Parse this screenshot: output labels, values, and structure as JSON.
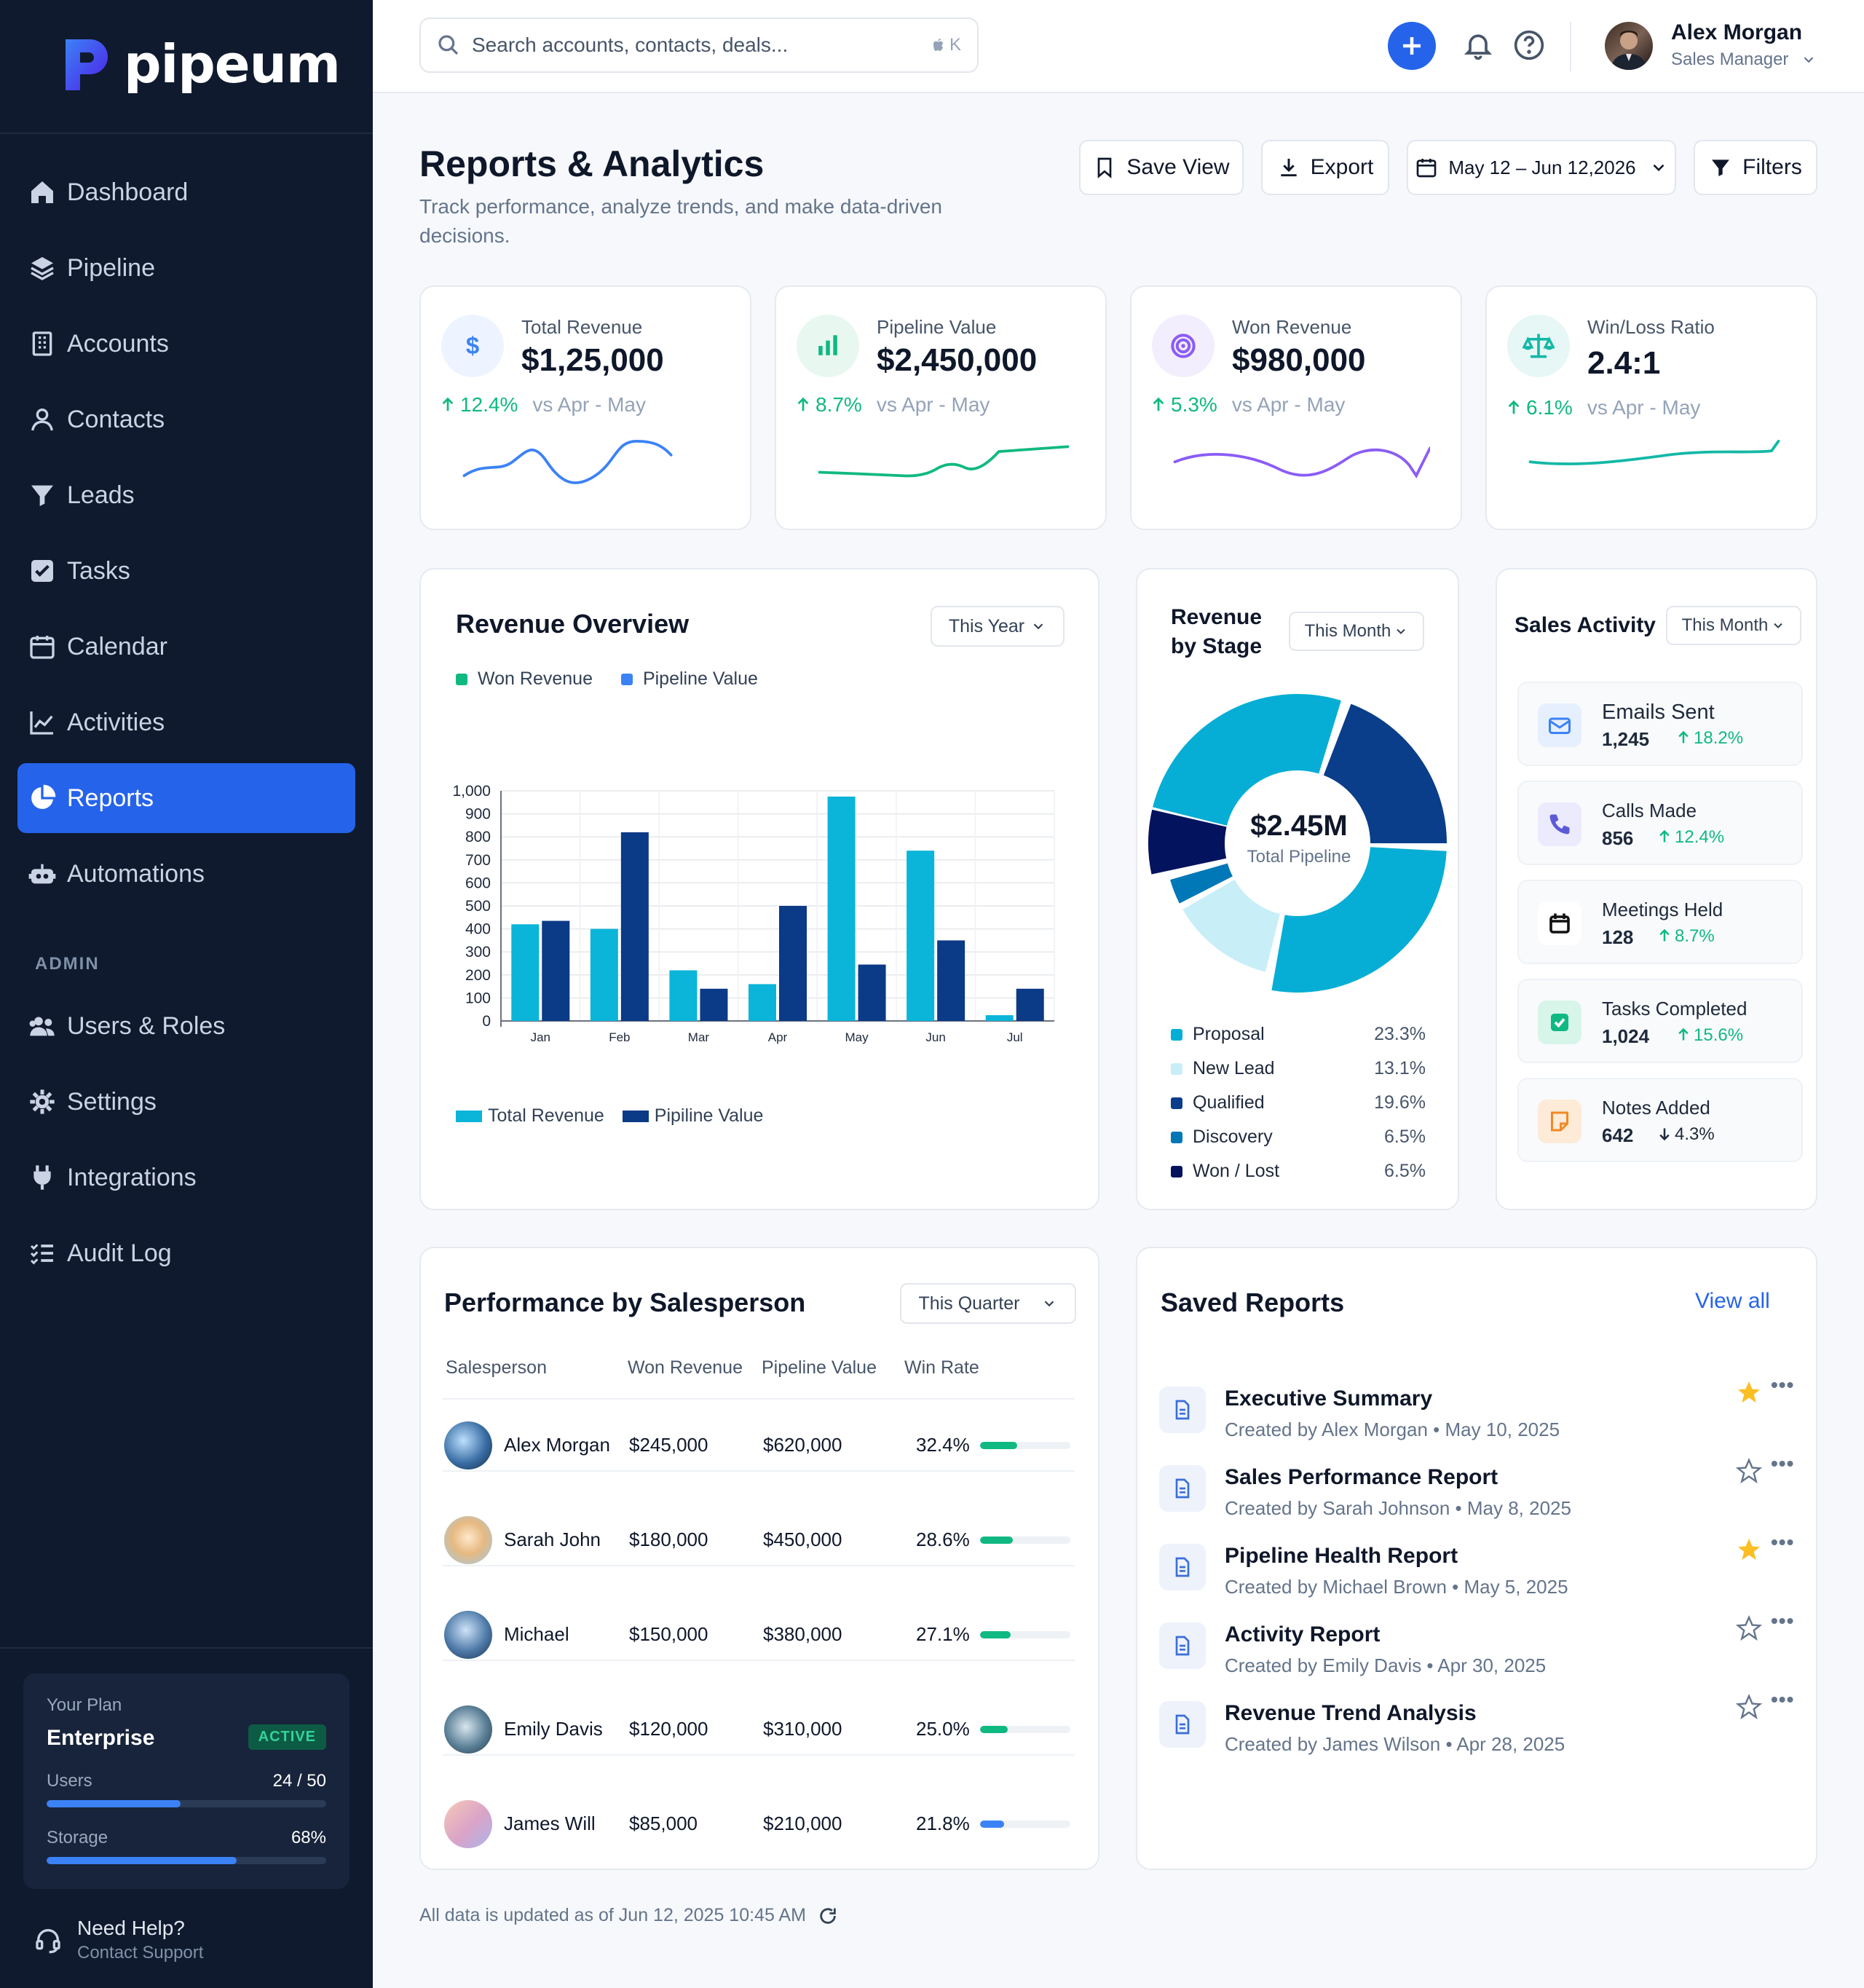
{
  "brand": {
    "name": "pipeum"
  },
  "sidebar": {
    "items": [
      {
        "label": "Dashboard",
        "icon": "home-icon"
      },
      {
        "label": "Pipeline",
        "icon": "layers-icon"
      },
      {
        "label": "Accounts",
        "icon": "building-icon"
      },
      {
        "label": "Contacts",
        "icon": "user-icon"
      },
      {
        "label": "Leads",
        "icon": "funnel-icon"
      },
      {
        "label": "Tasks",
        "icon": "checkbox-icon"
      },
      {
        "label": "Calendar",
        "icon": "calendar-icon"
      },
      {
        "label": "Activities",
        "icon": "line-chart-icon"
      },
      {
        "label": "Reports",
        "icon": "pie-chart-icon",
        "active": true
      },
      {
        "label": "Automations",
        "icon": "robot-icon"
      }
    ],
    "admin_label": "ADMIN",
    "admin_items": [
      {
        "label": "Users & Roles",
        "icon": "users-icon"
      },
      {
        "label": "Settings",
        "icon": "gear-icon"
      },
      {
        "label": "Integrations",
        "icon": "plug-icon"
      },
      {
        "label": "Audit Log",
        "icon": "list-icon"
      }
    ],
    "plan": {
      "label": "Your Plan",
      "name": "Enterprise",
      "status": "ACTIVE",
      "users_label": "Users",
      "users_value": "24 / 50",
      "users_fraction": 0.48,
      "storage_label": "Storage",
      "storage_value": "68%",
      "storage_fraction": 0.68
    },
    "help": {
      "title": "Need Help?",
      "subtitle": "Contact Support"
    }
  },
  "topbar": {
    "search_placeholder": "Search accounts, contacts, deals...",
    "shortcut": "K",
    "user_name": "Alex Morgan",
    "user_role": "Sales Manager"
  },
  "header": {
    "title": "Reports & Analytics",
    "subtitle": "Track performance, analyze trends, and make data-driven decisions.",
    "save_view": "Save View",
    "export": "Export",
    "date_range": "May 12 – Jun 12,2026",
    "filters": "Filters"
  },
  "kpis": [
    {
      "label": "Total Revenue",
      "value": "$1,25,000",
      "delta": "12.4%",
      "vs": "vs Apr - May",
      "color": "#3b82f6",
      "icon": "dollar-icon"
    },
    {
      "label": "Pipeline Value",
      "value": "$2,450,000",
      "delta": "8.7%",
      "vs": "vs Apr - May",
      "color": "#10b981",
      "icon": "bar-chart-icon"
    },
    {
      "label": "Won Revenue",
      "value": "$980,000",
      "delta": "5.3%",
      "vs": "vs Apr - May",
      "color": "#8b5cf6",
      "icon": "target-icon"
    },
    {
      "label": "Win/Loss Ratio",
      "value": "2.4:1",
      "delta": "6.1%",
      "vs": "vs Apr - May",
      "color": "#14b8a6",
      "icon": "scale-icon"
    }
  ],
  "revenue_overview": {
    "title": "Revenue Overview",
    "period": "This Year",
    "top_legend": [
      "Won Revenue",
      "Pipeline Value"
    ],
    "bottom_legend": [
      "Total Revenue",
      "Pipiline Value"
    ]
  },
  "chart_data": [
    {
      "type": "bar",
      "categories": [
        "Jan",
        "Feb",
        "Mar",
        "Apr",
        "May",
        "Jun",
        "Jul"
      ],
      "series": [
        {
          "name": "Total Revenue",
          "values": [
            420,
            400,
            220,
            160,
            975,
            740,
            25
          ]
        },
        {
          "name": "Pipiline Value",
          "values": [
            435,
            820,
            140,
            500,
            245,
            350,
            140
          ]
        }
      ],
      "ylim": [
        0,
        1000
      ],
      "yticks": [
        "0",
        "100",
        "200",
        "300",
        "400",
        "500",
        "600",
        "700",
        "800",
        "900",
        "1,000"
      ],
      "colors": [
        "#0bb4d9",
        "#0b3a86"
      ]
    },
    {
      "type": "pie",
      "title": "Revenue by Stage",
      "center_value": "$2.45M",
      "center_label": "Total Pipeline",
      "slices": [
        {
          "name": "Proposal",
          "pct": "23.3%",
          "color": "#06aed5"
        },
        {
          "name": "New Lead",
          "pct": "13.1%",
          "color": "#c8eef8"
        },
        {
          "name": "Qualified",
          "pct": "19.6%",
          "color": "#0a3d8a"
        },
        {
          "name": "Discovery",
          "pct": "6.5%",
          "color": "#0077b6"
        },
        {
          "name": "Won / Lost",
          "pct": "6.5%",
          "color": "#03135e"
        }
      ]
    }
  ],
  "revenue_by_stage": {
    "title_line1": "Revenue",
    "title_line2": "by Stage",
    "period": "This Month"
  },
  "sales_activity": {
    "title": "Sales Activity",
    "period": "This Month",
    "items": [
      {
        "label": "Emails Sent",
        "value": "1,245",
        "delta": "18.2%",
        "dir": "up",
        "icon": "mail-icon"
      },
      {
        "label": "Calls Made",
        "value": "856",
        "delta": "12.4%",
        "dir": "up",
        "icon": "phone-icon"
      },
      {
        "label": "Meetings Held",
        "value": "128",
        "delta": "8.7%",
        "dir": "up",
        "icon": "calendar-icon"
      },
      {
        "label": "Tasks Completed",
        "value": "1,024",
        "delta": "15.6%",
        "dir": "up",
        "icon": "check-square-icon"
      },
      {
        "label": "Notes Added",
        "value": "642",
        "delta": "4.3%",
        "dir": "down",
        "icon": "note-icon"
      }
    ]
  },
  "performance": {
    "title": "Performance by Salesperson",
    "period": "This Quarter",
    "columns": [
      "Salesperson",
      "Won Revenue",
      "Pipeline Value",
      "Win Rate"
    ],
    "rows": [
      {
        "name": "Alex Morgan",
        "won": "$245,000",
        "pipeline": "$620,000",
        "rate": "32.4%",
        "rate_value": 0.324,
        "color": "#10b981"
      },
      {
        "name": "Sarah John",
        "won": "$180,000",
        "pipeline": "$450,000",
        "rate": "28.6%",
        "rate_value": 0.286,
        "color": "#10b981"
      },
      {
        "name": "Michael",
        "won": "$150,000",
        "pipeline": "$380,000",
        "rate": "27.1%",
        "rate_value": 0.271,
        "color": "#10b981"
      },
      {
        "name": "Emily Davis",
        "won": "$120,000",
        "pipeline": "$310,000",
        "rate": "25.0%",
        "rate_value": 0.25,
        "color": "#10b981"
      },
      {
        "name": "James Will",
        "won": "$85,000",
        "pipeline": "$210,000",
        "rate": "21.8%",
        "rate_value": 0.218,
        "color": "#3b82f6"
      }
    ]
  },
  "saved_reports": {
    "title": "Saved Reports",
    "view_all": "View all",
    "items": [
      {
        "title": "Executive Summary",
        "sub": "Created by Alex Morgan • May 10, 2025",
        "starred": true
      },
      {
        "title": "Sales Performance Report",
        "sub": "Created by Sarah Johnson • May 8, 2025",
        "starred": false
      },
      {
        "title": "Pipeline Health Report",
        "sub": "Created by Michael Brown • May 5, 2025",
        "starred": true
      },
      {
        "title": "Activity Report",
        "sub": "Created by Emily Davis • Apr 30, 2025",
        "starred": false
      },
      {
        "title": "Revenue Trend Analysis",
        "sub": "Created by James Wilson • Apr 28, 2025",
        "starred": false
      }
    ]
  },
  "footer": {
    "note": "All data is updated as of Jun 12, 2025 10:45 AM"
  }
}
